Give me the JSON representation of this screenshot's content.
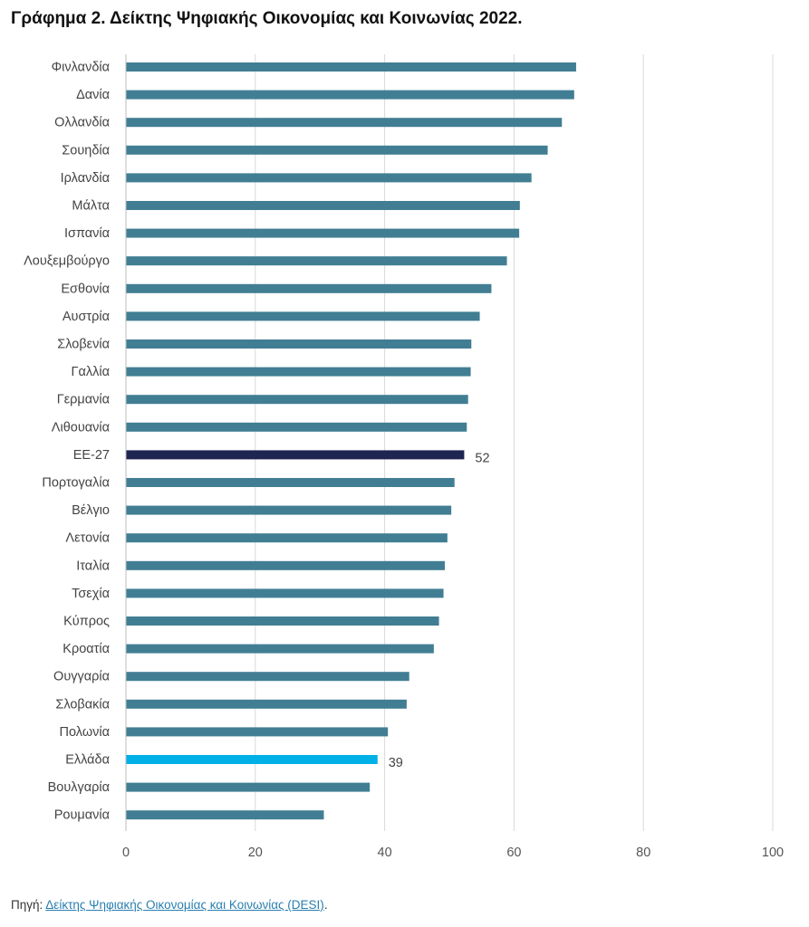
{
  "title": "Γράφημα 2. Δείκτης Ψηφιακής Οικονομίας και Κοινωνίας 2022.",
  "source": {
    "prefix": "Πηγή: ",
    "link_text": "Δείκτης Ψηφιακής Οικονομίας και Κοινωνίας (DESI)",
    "suffix": "."
  },
  "colors": {
    "bar": "#417e93",
    "highlight_eu": "#1e2550",
    "highlight_greece": "#00b0e6",
    "grid": "#d9d9d9",
    "axis_text": "#555555"
  },
  "chart_data": {
    "type": "bar",
    "orientation": "horizontal",
    "title": "Γράφημα 2. Δείκτης Ψηφιακής Οικονομίας και Κοινωνίας 2022.",
    "xlabel": "",
    "ylabel": "",
    "xlim": [
      0,
      100
    ],
    "xticks": [
      0,
      20,
      40,
      60,
      80,
      100
    ],
    "grid": true,
    "categories": [
      "Φινλανδία",
      "Δανία",
      "Ολλανδία",
      "Σουηδία",
      "Ιρλανδία",
      "Μάλτα",
      "Ισπανία",
      "Λουξεμβούργο",
      "Εσθονία",
      "Αυστρία",
      "Σλοβενία",
      "Γαλλία",
      "Γερμανία",
      "Λιθουανία",
      "ΕΕ-27",
      "Πορτογαλία",
      "Βέλγιο",
      "Λετονία",
      "Ιταλία",
      "Τσεχία",
      "Κύπρος",
      "Κροατία",
      "Ουγγαρία",
      "Σλοβακία",
      "Πολωνία",
      "Ελλάδα",
      "Βουλγαρία",
      "Ρουμανία"
    ],
    "values": [
      69.6,
      69.3,
      67.4,
      65.2,
      62.7,
      60.9,
      60.8,
      58.9,
      56.5,
      54.7,
      53.4,
      53.3,
      52.9,
      52.7,
      52.3,
      50.8,
      50.3,
      49.7,
      49.3,
      49.1,
      48.4,
      47.6,
      43.8,
      43.4,
      40.5,
      38.9,
      37.7,
      30.6
    ],
    "highlights": {
      "ΕΕ-27": "eu",
      "Ελλάδα": "greece"
    },
    "data_labels": {
      "ΕΕ-27": "52",
      "Ελλάδα": "39"
    }
  }
}
